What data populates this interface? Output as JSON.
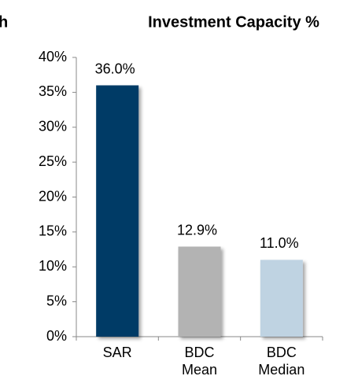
{
  "fragment": "h",
  "chart_data": {
    "type": "bar",
    "title": "Investment Capacity %",
    "categories": [
      "SAR",
      "BDC\nMean",
      "BDC\nMedian"
    ],
    "values": [
      36,
      12.9,
      11
    ],
    "value_labels": [
      "36.0%",
      "12.9%",
      "11.0%"
    ],
    "colors": [
      "#003a66",
      "#b3b3b3",
      "#bfd3e2"
    ],
    "ylim": [
      0,
      40
    ],
    "yticks": [
      {
        "value": 0,
        "label": "0%"
      },
      {
        "value": 5,
        "label": "5%"
      },
      {
        "value": 10,
        "label": "10%"
      },
      {
        "value": 15,
        "label": "15%"
      },
      {
        "value": 20,
        "label": "20%"
      },
      {
        "value": 25,
        "label": "25%"
      },
      {
        "value": 30,
        "label": "30%"
      },
      {
        "value": 35,
        "label": "35%"
      },
      {
        "value": 40,
        "label": "40%"
      }
    ]
  }
}
